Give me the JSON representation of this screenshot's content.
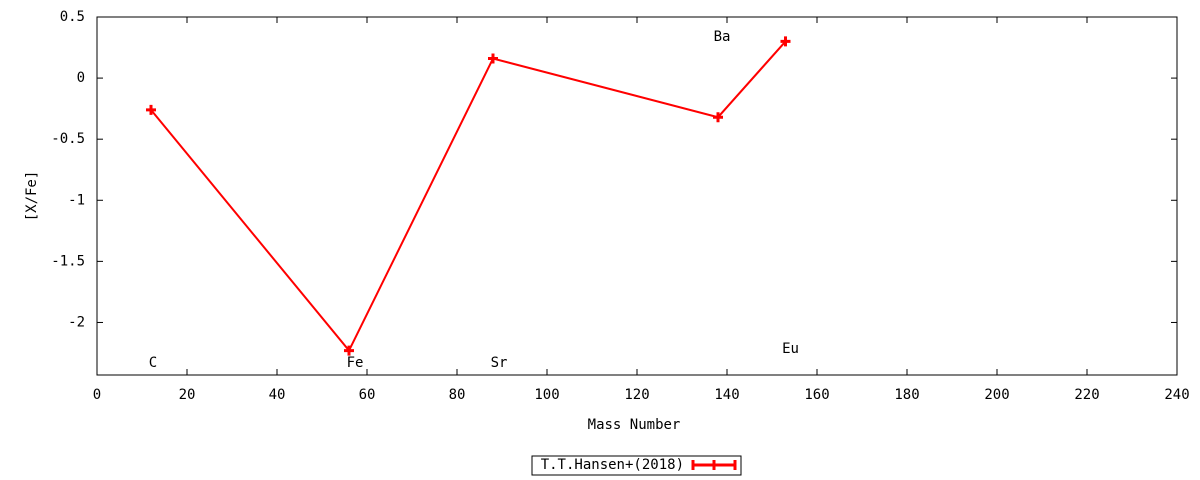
{
  "chart_data": {
    "type": "line",
    "x_label": "Mass Number",
    "y_label": "[X/Fe]",
    "x": [
      12,
      56,
      88,
      138,
      153
    ],
    "point_labels": [
      "C",
      "Fe",
      "Sr",
      "Ba",
      "Eu"
    ],
    "series": [
      {
        "name": "T.T.Hansen+(2018)",
        "color": "#ff0000",
        "values": [
          -0.26,
          -2.23,
          0.16,
          -0.32,
          0.3
        ]
      }
    ],
    "xlim": [
      0,
      240
    ],
    "xticks": [
      0,
      20,
      40,
      60,
      80,
      100,
      120,
      140,
      160,
      180,
      200,
      220,
      240
    ],
    "ylim": [
      -2.43,
      0.5
    ],
    "yticks": [
      0.5,
      0,
      -0.5,
      -1,
      -1.5,
      -2
    ],
    "grid": false,
    "legend": "bottom"
  }
}
